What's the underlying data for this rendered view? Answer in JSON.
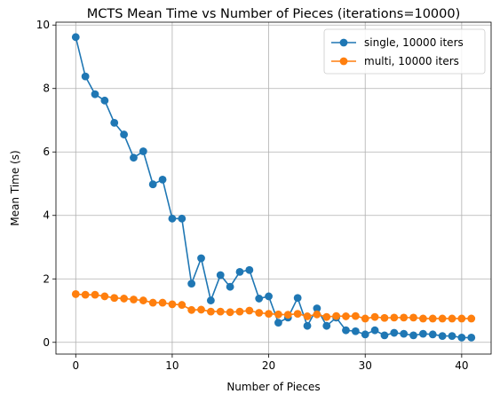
{
  "chart_data": {
    "type": "line",
    "title": "MCTS Mean Time vs Number of Pieces (iterations=10000)",
    "xlabel": "Number of Pieces",
    "ylabel": "Mean Time (s)",
    "xlim": [
      -2.05,
      43.05
    ],
    "ylim": [
      -0.37,
      10.09
    ],
    "xticks": [
      0,
      10,
      20,
      30,
      40
    ],
    "yticks": [
      0,
      2,
      4,
      6,
      8,
      10
    ],
    "grid": true,
    "legend_position": "top-right",
    "x": [
      0,
      1,
      2,
      3,
      4,
      5,
      6,
      7,
      8,
      9,
      10,
      11,
      12,
      13,
      14,
      15,
      16,
      17,
      18,
      19,
      20,
      21,
      22,
      23,
      24,
      25,
      26,
      27,
      28,
      29,
      30,
      31,
      32,
      33,
      34,
      35,
      36,
      37,
      38,
      39,
      40,
      41
    ],
    "series": [
      {
        "name": "single, 10000 iters",
        "color": "#1f77b4",
        "values": [
          9.62,
          8.38,
          7.82,
          7.62,
          6.92,
          6.55,
          5.82,
          6.02,
          4.98,
          5.13,
          3.9,
          3.9,
          1.85,
          2.65,
          1.32,
          2.12,
          1.75,
          2.22,
          2.28,
          1.38,
          1.45,
          0.62,
          0.78,
          1.4,
          0.52,
          1.07,
          0.52,
          0.78,
          0.38,
          0.35,
          0.25,
          0.38,
          0.22,
          0.3,
          0.27,
          0.22,
          0.27,
          0.25,
          0.2,
          0.2,
          0.15,
          0.15
        ]
      },
      {
        "name": "multi, 10000 iters",
        "color": "#ff7f0e",
        "values": [
          1.52,
          1.5,
          1.5,
          1.45,
          1.4,
          1.38,
          1.35,
          1.32,
          1.25,
          1.25,
          1.2,
          1.18,
          1.02,
          1.03,
          0.97,
          0.97,
          0.95,
          0.97,
          1.0,
          0.93,
          0.9,
          0.88,
          0.87,
          0.9,
          0.82,
          0.88,
          0.8,
          0.83,
          0.82,
          0.83,
          0.75,
          0.8,
          0.77,
          0.78,
          0.78,
          0.78,
          0.75,
          0.75,
          0.75,
          0.75,
          0.75,
          0.75
        ]
      }
    ]
  }
}
